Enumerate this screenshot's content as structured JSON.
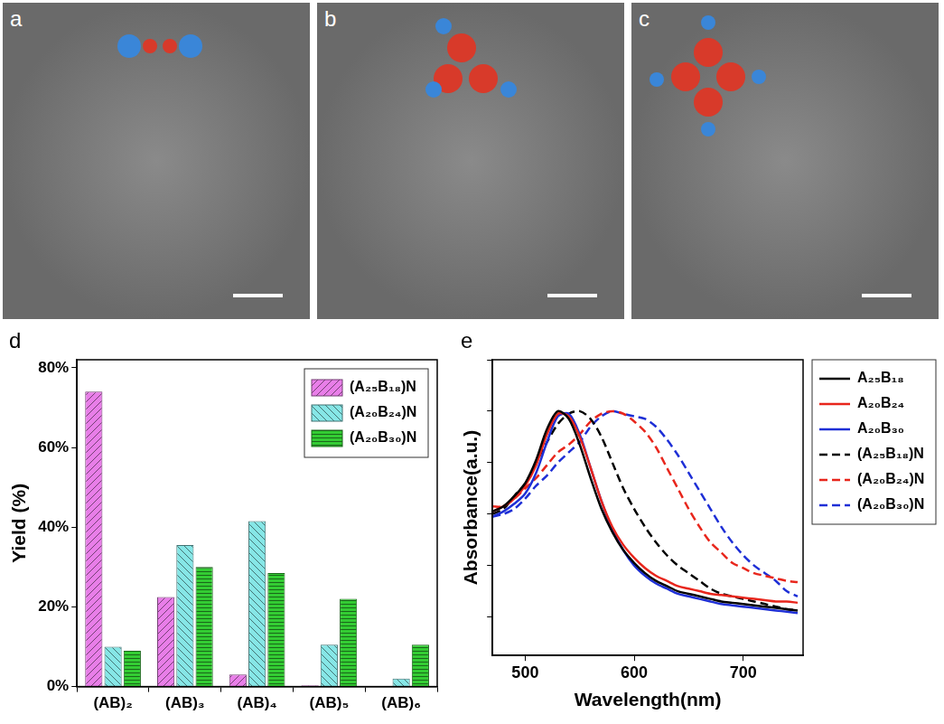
{
  "image_panels": [
    {
      "letter": "a"
    },
    {
      "letter": "b"
    },
    {
      "letter": "c"
    }
  ],
  "chart_data": [
    {
      "type": "bar",
      "title": "d",
      "categories": [
        "(AB)₂",
        "(AB)₃",
        "(AB)₄",
        "(AB)₅",
        "(AB)₆"
      ],
      "series": [
        {
          "name": "(A₂₅B₁₈)N",
          "color": "#e87ee8",
          "values": [
            74,
            22.5,
            3,
            0.3,
            0
          ]
        },
        {
          "name": "(A₂₀B₂₄)N",
          "color": "#86e6e6",
          "values": [
            10,
            35.5,
            41.5,
            10.5,
            2
          ]
        },
        {
          "name": "(A₂₀B₃₀)N",
          "color": "#33cc33",
          "values": [
            9,
            30,
            28.5,
            22,
            10.5
          ]
        }
      ],
      "ylabel": "Yield (%)",
      "ylim": [
        0,
        82
      ],
      "yticks": [
        {
          "value": 0,
          "label": "0%"
        },
        {
          "value": 20,
          "label": "20%"
        },
        {
          "value": 40,
          "label": "40%"
        },
        {
          "value": 60,
          "label": "60%"
        },
        {
          "value": 80,
          "label": "80%"
        }
      ],
      "grid": false,
      "legend": "upper right"
    },
    {
      "type": "line",
      "title": "e",
      "x": [
        470,
        480,
        490,
        500,
        510,
        520,
        530,
        540,
        550,
        560,
        570,
        580,
        590,
        600,
        610,
        620,
        630,
        640,
        650,
        660,
        670,
        680,
        690,
        700,
        710,
        720,
        730,
        740,
        750
      ],
      "series": [
        {
          "name": "A₂₅B₁₈",
          "color": "#000000",
          "line_style": "solid",
          "values": [
            0.61,
            0.63,
            0.67,
            0.72,
            0.81,
            0.93,
            1.0,
            0.97,
            0.87,
            0.74,
            0.62,
            0.53,
            0.46,
            0.41,
            0.37,
            0.34,
            0.32,
            0.3,
            0.29,
            0.28,
            0.27,
            0.26,
            0.255,
            0.25,
            0.245,
            0.24,
            0.235,
            0.23,
            0.225
          ]
        },
        {
          "name": "A₂₀B₂₄",
          "color": "#e8261c",
          "line_style": "solid",
          "values": [
            0.61,
            0.63,
            0.66,
            0.71,
            0.79,
            0.91,
            0.99,
            0.98,
            0.9,
            0.78,
            0.65,
            0.55,
            0.48,
            0.43,
            0.39,
            0.36,
            0.34,
            0.32,
            0.31,
            0.3,
            0.29,
            0.285,
            0.28,
            0.275,
            0.27,
            0.265,
            0.26,
            0.26,
            0.255
          ]
        },
        {
          "name": "A₂₀B₃₀",
          "color": "#1e2fd6",
          "line_style": "solid",
          "values": [
            0.59,
            0.61,
            0.64,
            0.68,
            0.76,
            0.88,
            0.98,
            0.99,
            0.91,
            0.78,
            0.65,
            0.54,
            0.46,
            0.4,
            0.36,
            0.33,
            0.31,
            0.29,
            0.28,
            0.27,
            0.26,
            0.25,
            0.245,
            0.24,
            0.235,
            0.23,
            0.225,
            0.22,
            0.215
          ]
        },
        {
          "name": "(A₂₅B₁₈)N",
          "color": "#000000",
          "line_style": "dashed",
          "values": [
            0.6,
            0.62,
            0.67,
            0.72,
            0.8,
            0.88,
            0.95,
            0.99,
            1.0,
            0.97,
            0.9,
            0.8,
            0.7,
            0.62,
            0.55,
            0.49,
            0.44,
            0.4,
            0.37,
            0.34,
            0.31,
            0.29,
            0.28,
            0.27,
            0.26,
            0.25,
            0.24,
            0.23,
            0.225
          ]
        },
        {
          "name": "(A₂₀B₂₄)N",
          "color": "#e8261c",
          "line_style": "dashed",
          "values": [
            0.63,
            0.63,
            0.66,
            0.7,
            0.74,
            0.79,
            0.84,
            0.87,
            0.91,
            0.96,
            0.99,
            1.0,
            0.99,
            0.96,
            0.92,
            0.86,
            0.78,
            0.7,
            0.62,
            0.55,
            0.49,
            0.45,
            0.41,
            0.39,
            0.37,
            0.36,
            0.35,
            0.34,
            0.335
          ]
        },
        {
          "name": "(A₂₀B₃₀)N",
          "color": "#1e2fd6",
          "line_style": "dashed",
          "values": [
            0.59,
            0.6,
            0.62,
            0.66,
            0.71,
            0.75,
            0.8,
            0.84,
            0.88,
            0.94,
            0.98,
            1.0,
            0.99,
            0.98,
            0.97,
            0.94,
            0.89,
            0.83,
            0.76,
            0.69,
            0.62,
            0.55,
            0.49,
            0.44,
            0.4,
            0.37,
            0.34,
            0.3,
            0.28
          ]
        }
      ],
      "xlabel": "Wavelength(nm)",
      "ylabel": "Absorbance(a.u.)",
      "xlim": [
        470,
        755
      ],
      "xticks": [
        500,
        600,
        700
      ],
      "ylim": [
        0.05,
        1.2
      ],
      "yticks": [
        0.2,
        0.4,
        0.6,
        0.8,
        1.0,
        1.2
      ],
      "tick_labels": "x",
      "grid": false,
      "legend": "right"
    }
  ]
}
